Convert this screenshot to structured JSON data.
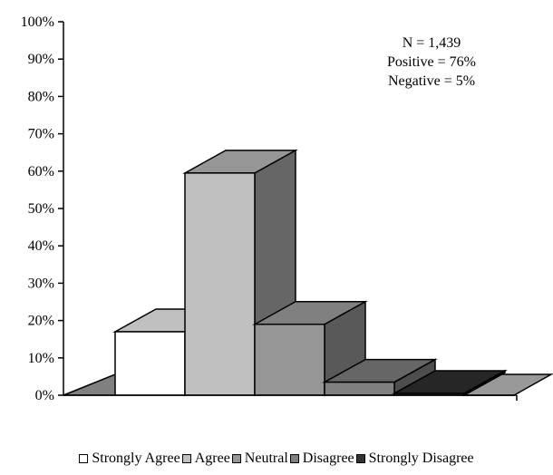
{
  "chart_data": {
    "type": "bar",
    "style": "3d-column",
    "categories": [
      "Strongly Agree",
      "Agree",
      "Neutral",
      "Disagree",
      "Strongly Disagree"
    ],
    "values": [
      17,
      59.5,
      19,
      3.5,
      0.5
    ],
    "y_tick_labels": [
      "0%",
      "10%",
      "20%",
      "30%",
      "40%",
      "50%",
      "60%",
      "70%",
      "80%",
      "90%",
      "100%"
    ],
    "ylim": [
      0,
      100
    ],
    "grid": false,
    "legend_position": "bottom",
    "annotations": [
      "N = 1,439",
      "Positive = 76%",
      "Negative = 5%"
    ],
    "colors": {
      "front": [
        "#ffffff",
        "#c0c0c0",
        "#969696",
        "#808080",
        "#333333"
      ],
      "top": [
        "#c0c0c0",
        "#969696",
        "#808080",
        "#666666",
        "#262626"
      ],
      "side": [
        "#969696",
        "#666666",
        "#595959",
        "#4d4d4d",
        "#1a1a1a"
      ],
      "floor_front": "#808080",
      "floor_top": "#999999",
      "legend": [
        "#ffffff",
        "#c0c0c0",
        "#969696",
        "#808080",
        "#333333"
      ]
    }
  }
}
